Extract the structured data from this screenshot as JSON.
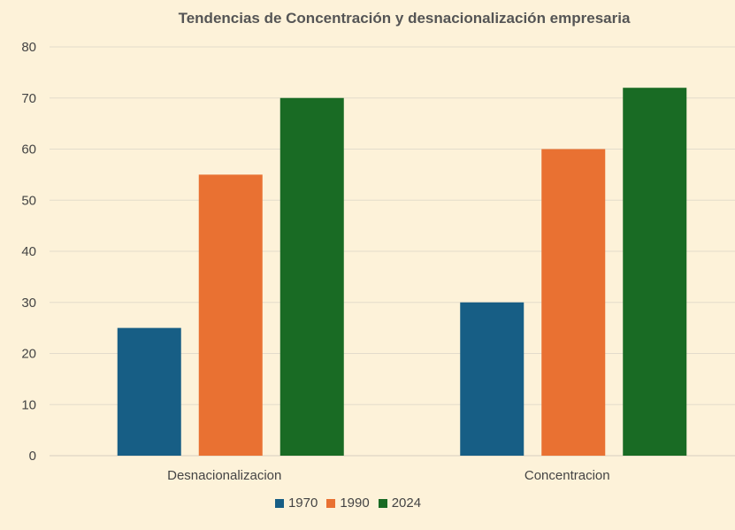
{
  "chart_data": {
    "type": "bar",
    "title": "Tendencias de Concentración y desnacionalización empresaria",
    "categories": [
      "Desnacionalizacion",
      "Concentracion"
    ],
    "series": [
      {
        "name": "1970",
        "values": [
          25,
          30
        ],
        "color": "#175e85"
      },
      {
        "name": "1990",
        "values": [
          55,
          60
        ],
        "color": "#e97132"
      },
      {
        "name": "2024",
        "values": [
          70,
          72
        ],
        "color": "#196b24"
      }
    ],
    "ylim": [
      0,
      80
    ],
    "yticks": [
      0,
      10,
      20,
      30,
      40,
      50,
      60,
      70,
      80
    ],
    "grid": true,
    "legend_position": "bottom"
  },
  "colors": {
    "background": "#fdf2d9",
    "gridline": "#e3dccb",
    "axis_text": "#444444",
    "title_text": "#555555"
  }
}
